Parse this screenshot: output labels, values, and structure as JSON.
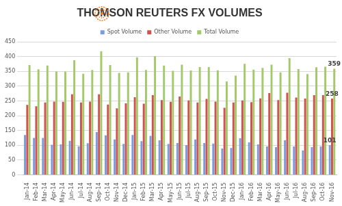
{
  "chart_data": {
    "type": "bar",
    "title": "THOMSON REUTERS FX VOLUMES",
    "categories": [
      "Jan-14",
      "Feb-14",
      "Mar-14",
      "Apr-14",
      "May-14",
      "Jun-14",
      "Jul-14",
      "Aug-14",
      "Sep-14",
      "Oct-14",
      "Nov-14",
      "Dec-14",
      "Jan-15",
      "Feb-15",
      "Mar-15",
      "Apr-15",
      "May-15",
      "Jun-15",
      "Jul-15",
      "Aug-15",
      "Sep-15",
      "Oct-15",
      "Nov-15",
      "Dec-15",
      "Jan-16",
      "Feb-16",
      "Mar-16",
      "Apr-16",
      "May-16",
      "Jun-16",
      "Jul-16",
      "Aug-16",
      "Sep-16",
      "Oct-16",
      "Nov-16"
    ],
    "series": [
      {
        "name": "Spot Volume",
        "color": "#7a9be0",
        "values": [
          135,
          125,
          125,
          102,
          103,
          115,
          97,
          107,
          145,
          134,
          120,
          105,
          135,
          114,
          132,
          117,
          105,
          108,
          101,
          120,
          108,
          106,
          89,
          91,
          124,
          110,
          103,
          96,
          94,
          117,
          96,
          83,
          94,
          96,
          101
        ],
        "value_labels": [
          null,
          null,
          null,
          null,
          null,
          null,
          null,
          null,
          null,
          null,
          null,
          null,
          null,
          null,
          null,
          null,
          null,
          null,
          null,
          null,
          null,
          null,
          null,
          null,
          null,
          null,
          null,
          null,
          null,
          null,
          null,
          null,
          null,
          null,
          "101"
        ]
      },
      {
        "name": "Other Volume",
        "color": "#d0524f",
        "values": [
          237,
          232,
          245,
          248,
          247,
          273,
          245,
          248,
          273,
          238,
          225,
          242,
          263,
          241,
          270,
          253,
          247,
          265,
          252,
          245,
          257,
          248,
          227,
          245,
          252,
          246,
          259,
          277,
          253,
          278,
          262,
          258,
          270,
          270,
          258
        ],
        "value_labels": [
          null,
          null,
          null,
          null,
          null,
          null,
          null,
          null,
          null,
          null,
          null,
          null,
          null,
          null,
          null,
          null,
          null,
          null,
          null,
          null,
          null,
          null,
          null,
          null,
          null,
          null,
          null,
          null,
          null,
          null,
          null,
          null,
          null,
          null,
          "258"
        ]
      },
      {
        "name": "Total Volume",
        "color": "#a3c96a",
        "values": [
          372,
          357,
          370,
          350,
          350,
          388,
          342,
          355,
          418,
          372,
          345,
          347,
          398,
          355,
          402,
          370,
          352,
          373,
          353,
          365,
          365,
          354,
          316,
          336,
          376,
          356,
          362,
          373,
          347,
          395,
          358,
          341,
          364,
          366,
          359
        ],
        "value_labels": [
          null,
          null,
          null,
          null,
          null,
          null,
          null,
          null,
          null,
          null,
          null,
          null,
          null,
          null,
          null,
          null,
          null,
          null,
          null,
          null,
          null,
          null,
          null,
          null,
          null,
          null,
          null,
          null,
          null,
          null,
          null,
          null,
          null,
          null,
          "359"
        ]
      }
    ],
    "ylim": [
      0,
      450
    ],
    "yticks": [
      0,
      50,
      100,
      150,
      200,
      250,
      300,
      350,
      400,
      450
    ],
    "grid": true,
    "legend": "top"
  }
}
